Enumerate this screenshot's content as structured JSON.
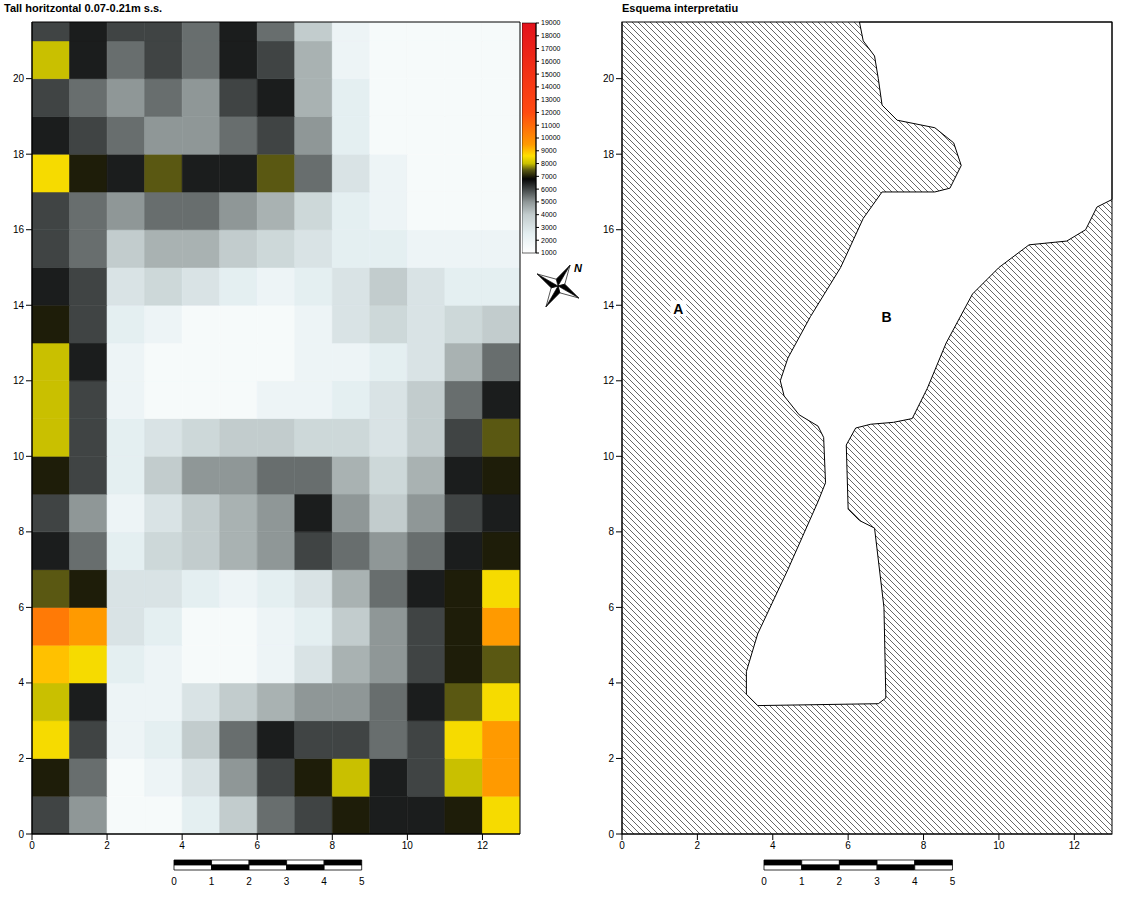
{
  "chart_data": [
    {
      "type": "heatmap",
      "title": "Tall horitzontal 0.07-0.21m s.s.",
      "xlim": [
        0,
        13
      ],
      "ylim": [
        0,
        21.5
      ],
      "xticks": [
        0,
        2,
        4,
        6,
        8,
        10,
        12
      ],
      "yticks": [
        0,
        2,
        4,
        6,
        8,
        10,
        12,
        14,
        16,
        18,
        20
      ],
      "x_edges": [
        0,
        1,
        2,
        3,
        4,
        5,
        6,
        7,
        8,
        9,
        10,
        11,
        12,
        13
      ],
      "y_edges": [
        0,
        1,
        2,
        3,
        4,
        5,
        6,
        7,
        8,
        9,
        10,
        11,
        12,
        13,
        14,
        15,
        16,
        17,
        18,
        19,
        20,
        21,
        21.5
      ],
      "cells": [
        [
          6000,
          5000,
          1500,
          1500,
          2500,
          4000,
          5500,
          6000,
          7000,
          6500,
          6500,
          7000,
          8500
        ],
        [
          7000,
          5500,
          1500,
          2000,
          3000,
          5000,
          6000,
          7000,
          8000,
          6500,
          6000,
          8000,
          9500
        ],
        [
          8500,
          6000,
          2000,
          2500,
          4000,
          5500,
          6500,
          6000,
          6000,
          5500,
          6000,
          8500,
          9500
        ],
        [
          8000,
          6500,
          2000,
          2000,
          3000,
          4000,
          4500,
          5000,
          5000,
          5500,
          6500,
          7500,
          8500
        ],
        [
          9000,
          8500,
          2500,
          2000,
          1500,
          1500,
          2000,
          3000,
          4500,
          5000,
          6000,
          7000,
          7500
        ],
        [
          10500,
          9500,
          3000,
          2500,
          1500,
          1500,
          2000,
          2500,
          4000,
          5000,
          6000,
          7000,
          9500
        ],
        [
          7500,
          7000,
          3000,
          3000,
          2500,
          2000,
          2500,
          3000,
          4500,
          5500,
          6500,
          7000,
          8500
        ],
        [
          6500,
          5500,
          2500,
          3500,
          4000,
          4500,
          5000,
          6000,
          5500,
          5000,
          5500,
          6500,
          7000
        ],
        [
          6000,
          5000,
          2000,
          3000,
          4000,
          4500,
          5000,
          6500,
          5000,
          4000,
          5000,
          6000,
          6500
        ],
        [
          7000,
          6000,
          2500,
          4000,
          5000,
          5000,
          5500,
          5500,
          4500,
          3500,
          4500,
          6500,
          7000
        ],
        [
          8000,
          6000,
          2500,
          3000,
          3500,
          4000,
          4000,
          3500,
          3500,
          3000,
          4000,
          6000,
          7500
        ],
        [
          8000,
          6000,
          2000,
          1500,
          1500,
          1500,
          2000,
          2000,
          2500,
          3000,
          4000,
          5500,
          6500
        ],
        [
          8000,
          6500,
          2000,
          1500,
          1500,
          1500,
          1500,
          2000,
          2000,
          2500,
          3000,
          4500,
          5500
        ],
        [
          7000,
          6000,
          2500,
          2000,
          1500,
          1500,
          1500,
          2000,
          3000,
          3500,
          3000,
          3500,
          4000
        ],
        [
          6500,
          6000,
          3000,
          3500,
          3000,
          2500,
          2000,
          2500,
          3000,
          4000,
          3000,
          2500,
          2500
        ],
        [
          6000,
          5500,
          4000,
          4500,
          4500,
          4000,
          3500,
          3000,
          2500,
          2500,
          2000,
          2000,
          2000
        ],
        [
          6000,
          5500,
          5000,
          5500,
          5500,
          5000,
          4500,
          3500,
          2500,
          2000,
          1500,
          1500,
          1500
        ],
        [
          8500,
          7000,
          6500,
          7500,
          6500,
          6500,
          7500,
          5500,
          3000,
          2000,
          1500,
          1500,
          1500
        ],
        [
          6500,
          6000,
          5500,
          5000,
          5000,
          5500,
          6000,
          5000,
          2500,
          1500,
          1500,
          1500,
          1500
        ],
        [
          6000,
          5500,
          5000,
          5500,
          5000,
          6000,
          6500,
          4500,
          2500,
          1500,
          1500,
          1500,
          1500
        ],
        [
          8000,
          6500,
          5500,
          6000,
          5500,
          6500,
          6000,
          4500,
          2000,
          1500,
          1500,
          1500,
          1500
        ],
        [
          6000,
          6500,
          6000,
          6000,
          5500,
          6500,
          5500,
          4000,
          2000,
          1500,
          1500,
          1500,
          1500
        ]
      ],
      "colorbar": {
        "range": [
          1000,
          19000
        ],
        "ticks": [
          1000,
          2000,
          3000,
          4000,
          5000,
          6000,
          7000,
          8000,
          9000,
          10000,
          11000,
          12000,
          13000,
          14000,
          15000,
          16000,
          17000,
          18000,
          19000
        ]
      },
      "scale_bar": {
        "range": [
          0,
          5
        ],
        "ticks": [
          0,
          1,
          2,
          3,
          4,
          5
        ]
      }
    },
    {
      "type": "diagram",
      "title": "Esquema interpretatiu",
      "xlim": [
        0,
        13
      ],
      "ylim": [
        0,
        21.5
      ],
      "xticks": [
        0,
        2,
        4,
        6,
        8,
        10,
        12
      ],
      "yticks": [
        0,
        2,
        4,
        6,
        8,
        10,
        12,
        14,
        16,
        18,
        20
      ],
      "regions": [
        {
          "label": "A"
        },
        {
          "label": "B",
          "outline": [
            [
              6.3,
              21.5
            ],
            [
              6.4,
              21.0
            ],
            [
              6.7,
              20.6
            ],
            [
              6.8,
              20.0
            ],
            [
              6.9,
              19.3
            ],
            [
              7.3,
              18.9
            ],
            [
              8.3,
              18.7
            ],
            [
              8.8,
              18.3
            ],
            [
              9.0,
              17.7
            ],
            [
              8.7,
              17.1
            ],
            [
              8.3,
              17.0
            ],
            [
              6.9,
              17.0
            ],
            [
              6.4,
              16.3
            ],
            [
              5.8,
              15.0
            ],
            [
              5.0,
              13.7
            ],
            [
              4.4,
              12.6
            ],
            [
              4.2,
              12.0
            ],
            [
              4.3,
              11.6
            ],
            [
              4.7,
              11.1
            ],
            [
              5.2,
              10.8
            ],
            [
              5.35,
              10.5
            ],
            [
              5.4,
              9.3
            ],
            [
              5.2,
              8.8
            ],
            [
              4.4,
              7.0
            ],
            [
              3.6,
              5.3
            ],
            [
              3.3,
              4.3
            ],
            [
              3.3,
              3.7
            ],
            [
              3.6,
              3.4
            ],
            [
              6.8,
              3.45
            ],
            [
              7.0,
              3.6
            ],
            [
              6.95,
              6.0
            ],
            [
              6.7,
              8.1
            ],
            [
              6.3,
              8.3
            ],
            [
              6.0,
              8.6
            ],
            [
              5.95,
              10.3
            ],
            [
              6.2,
              10.75
            ],
            [
              6.6,
              10.85
            ],
            [
              7.2,
              10.9
            ],
            [
              7.7,
              11.0
            ],
            [
              8.1,
              11.8
            ],
            [
              8.6,
              13.0
            ],
            [
              9.3,
              14.3
            ],
            [
              10.0,
              15.0
            ],
            [
              10.8,
              15.6
            ],
            [
              11.8,
              15.7
            ],
            [
              12.3,
              16.0
            ],
            [
              12.6,
              16.6
            ],
            [
              13.0,
              16.8
            ],
            [
              13.0,
              21.5
            ]
          ]
        }
      ],
      "scale_bar": {
        "range": [
          0,
          5
        ],
        "ticks": [
          0,
          1,
          2,
          3,
          4,
          5
        ]
      }
    }
  ],
  "compass": {
    "label": "N"
  }
}
